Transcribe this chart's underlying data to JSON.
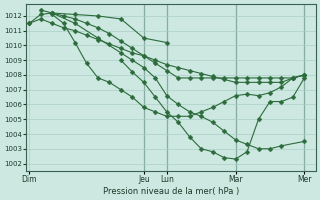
{
  "background_color": "#cce8e0",
  "plot_bg_color": "#cce8e0",
  "grid_color": "#aacfc8",
  "line_color": "#2d6b3c",
  "marker_color": "#2d6b3c",
  "ylim": [
    1001.5,
    1012.8
  ],
  "yticks": [
    1002,
    1003,
    1004,
    1005,
    1006,
    1007,
    1008,
    1009,
    1010,
    1011,
    1012
  ],
  "xlabel": "Pression niveau de la mer( hPa )",
  "xtick_labels": [
    "Dim",
    "Jeu",
    "Lun",
    "Mar",
    "Mer"
  ],
  "xtick_positions": [
    0,
    20,
    24,
    36,
    48
  ],
  "xlim": [
    -0.5,
    50
  ],
  "vlines_x": [
    20,
    24,
    36,
    48
  ],
  "line_A_x": [
    0,
    2,
    4,
    6,
    8,
    10,
    12,
    14,
    16,
    18,
    20,
    22,
    24,
    26,
    28,
    30,
    32,
    34,
    36,
    38,
    40,
    42,
    44,
    46,
    48
  ],
  "line_A_y": [
    1011.5,
    1011.8,
    1011.5,
    1011.2,
    1011.0,
    1010.7,
    1010.4,
    1010.1,
    1009.8,
    1009.5,
    1009.3,
    1009.0,
    1008.7,
    1008.5,
    1008.3,
    1008.1,
    1007.9,
    1007.7,
    1007.5,
    1007.5,
    1007.5,
    1007.5,
    1007.5,
    1007.8,
    1008.0
  ],
  "line_B_x": [
    2,
    4,
    8,
    12,
    16,
    20,
    24
  ],
  "line_B_y": [
    1012.4,
    1012.2,
    1012.1,
    1012.0,
    1011.8,
    1010.5,
    1010.2
  ],
  "line_C_x": [
    4,
    6,
    8,
    10,
    12,
    14,
    16,
    18,
    20,
    22,
    24,
    26,
    28,
    30,
    32,
    34,
    36,
    38,
    40,
    42,
    44,
    46,
    48
  ],
  "line_C_y": [
    1012.2,
    1012.0,
    1011.8,
    1011.5,
    1011.2,
    1010.8,
    1010.3,
    1009.8,
    1009.3,
    1008.8,
    1008.3,
    1007.8,
    1007.8,
    1007.8,
    1007.8,
    1007.8,
    1007.8,
    1007.8,
    1007.8,
    1007.8,
    1007.8,
    1007.8,
    1008.0
  ],
  "line_D_x": [
    4,
    6,
    8,
    10,
    12,
    14,
    16,
    18,
    20,
    22,
    24,
    26,
    28,
    30,
    32,
    34,
    36,
    38,
    40,
    42,
    44,
    46,
    48
  ],
  "line_D_y": [
    1012.1,
    1011.5,
    1010.2,
    1008.8,
    1007.8,
    1007.5,
    1007.0,
    1006.5,
    1005.8,
    1005.5,
    1005.2,
    1005.2,
    1005.2,
    1005.5,
    1005.8,
    1006.2,
    1006.6,
    1006.7,
    1006.6,
    1006.8,
    1007.2,
    1007.8,
    1008.0
  ],
  "line_E_x": [
    0,
    2,
    4,
    8,
    12,
    16,
    18,
    20,
    22,
    24,
    26,
    28,
    30,
    32,
    34,
    36,
    38,
    40,
    42,
    44,
    48
  ],
  "line_E_y": [
    1011.5,
    1012.1,
    1012.2,
    1011.5,
    1010.5,
    1009.5,
    1009.0,
    1008.5,
    1007.8,
    1006.6,
    1006.0,
    1005.5,
    1005.2,
    1004.8,
    1004.2,
    1003.6,
    1003.3,
    1003.0,
    1003.0,
    1003.2,
    1003.5
  ],
  "line_F_x": [
    16,
    18,
    20,
    22,
    24,
    26,
    28,
    30,
    32,
    34,
    36,
    38,
    40,
    42,
    44,
    46,
    48
  ],
  "line_F_y": [
    1009.0,
    1008.2,
    1007.5,
    1006.5,
    1005.5,
    1004.8,
    1003.8,
    1003.0,
    1002.8,
    1002.4,
    1002.3,
    1002.8,
    1005.0,
    1006.2,
    1006.2,
    1006.5,
    1007.8
  ],
  "figsize": [
    3.2,
    2.0
  ],
  "dpi": 100
}
